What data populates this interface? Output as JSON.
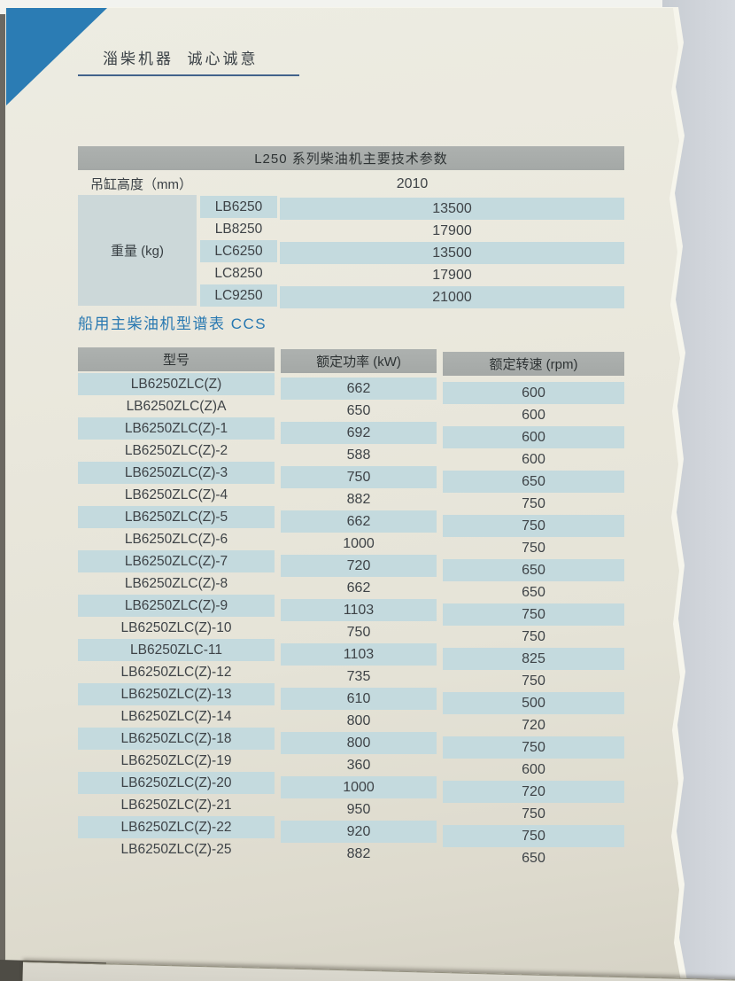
{
  "brand": {
    "header": "淄柴机器  诚心诚意"
  },
  "params_table": {
    "title": "L250 系列柴油机主要技术参数",
    "hoist_height_label": "吊缸高度（mm）",
    "hoist_height_value": "2010",
    "weight_label": "重量 (kg)",
    "weight_rows": [
      {
        "model": "LB6250",
        "value": "13500"
      },
      {
        "model": "LB8250",
        "value": "17900"
      },
      {
        "model": "LC6250",
        "value": "13500"
      },
      {
        "model": "LC8250",
        "value": "17900"
      },
      {
        "model": "LC9250",
        "value": "21000"
      }
    ]
  },
  "ccs_section": {
    "title": "船用主柴油机型谱表 CCS",
    "columns": {
      "model": "型号",
      "power": "额定功率 (kW)",
      "speed": "额定转速 (rpm)"
    },
    "rows": [
      {
        "model": "LB6250ZLC(Z)",
        "power": "662",
        "speed": "600"
      },
      {
        "model": "LB6250ZLC(Z)A",
        "power": "650",
        "speed": "600"
      },
      {
        "model": "LB6250ZLC(Z)-1",
        "power": "692",
        "speed": "600"
      },
      {
        "model": "LB6250ZLC(Z)-2",
        "power": "588",
        "speed": "600"
      },
      {
        "model": "LB6250ZLC(Z)-3",
        "power": "750",
        "speed": "650"
      },
      {
        "model": "LB6250ZLC(Z)-4",
        "power": "882",
        "speed": "750"
      },
      {
        "model": "LB6250ZLC(Z)-5",
        "power": "662",
        "speed": "750"
      },
      {
        "model": "LB6250ZLC(Z)-6",
        "power": "1000",
        "speed": "750"
      },
      {
        "model": "LB6250ZLC(Z)-7",
        "power": "720",
        "speed": "650"
      },
      {
        "model": "LB6250ZLC(Z)-8",
        "power": "662",
        "speed": "650"
      },
      {
        "model": "LB6250ZLC(Z)-9",
        "power": "1103",
        "speed": "750"
      },
      {
        "model": "LB6250ZLC(Z)-10",
        "power": "750",
        "speed": "750"
      },
      {
        "model": "LB6250ZLC-11",
        "power": "1103",
        "speed": "825"
      },
      {
        "model": "LB6250ZLC(Z)-12",
        "power": "735",
        "speed": "750"
      },
      {
        "model": "LB6250ZLC(Z)-13",
        "power": "610",
        "speed": "500"
      },
      {
        "model": "LB6250ZLC(Z)-14",
        "power": "800",
        "speed": "720"
      },
      {
        "model": "LB6250ZLC(Z)-18",
        "power": "800",
        "speed": "750"
      },
      {
        "model": "LB6250ZLC(Z)-19",
        "power": "360",
        "speed": "600"
      },
      {
        "model": "LB6250ZLC(Z)-20",
        "power": "1000",
        "speed": "720"
      },
      {
        "model": "LB6250ZLC(Z)-21",
        "power": "950",
        "speed": "750"
      },
      {
        "model": "LB6250ZLC(Z)-22",
        "power": "920",
        "speed": "750"
      },
      {
        "model": "LB6250ZLC(Z)-25",
        "power": "882",
        "speed": "650"
      }
    ]
  },
  "colors": {
    "accent_blue": "#2b7cb4",
    "title_blue": "#2878b1",
    "stripe_blue": "#c4dade",
    "header_gray": "#a8acaa",
    "page_cream": "#e9e7dc"
  }
}
